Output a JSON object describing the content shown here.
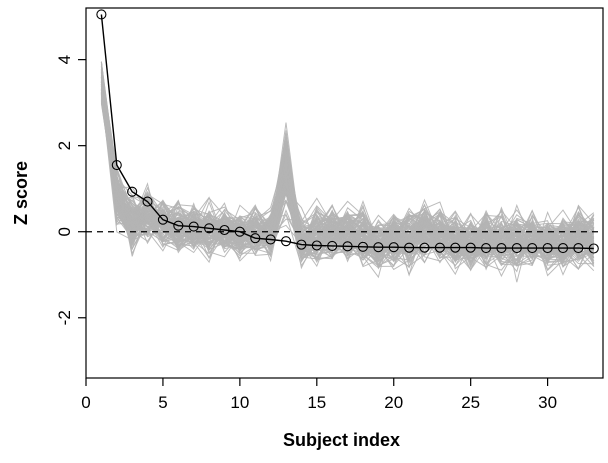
{
  "chart_data": {
    "type": "line",
    "title": "",
    "xlabel": "Subject index",
    "ylabel": "Z score",
    "xlim": [
      0,
      33.6
    ],
    "ylim": [
      -3.4,
      5.2
    ],
    "x_ticks": [
      0,
      5,
      10,
      15,
      20,
      25,
      30
    ],
    "y_ticks": [
      -2,
      0,
      2,
      4
    ],
    "grid": false,
    "legend": "none",
    "reference_line": {
      "y": 0,
      "style": "dashed"
    },
    "colors": {
      "highlighted_series": "#000000",
      "background_series": "#b4b4b4",
      "reference_line": "#000000",
      "axes": "#000000"
    },
    "series": [
      {
        "style": "black line with circle markers",
        "x": [
          1,
          2,
          3,
          4,
          5,
          6,
          7,
          8,
          9,
          10,
          11,
          12,
          13,
          14,
          15,
          16,
          17,
          18,
          19,
          20,
          21,
          22,
          23,
          24,
          25,
          26,
          27,
          28,
          29,
          30,
          31,
          32,
          33
        ],
        "values": [
          5.05,
          1.55,
          0.93,
          0.7,
          0.28,
          0.14,
          0.12,
          0.08,
          0.04,
          0.0,
          -0.15,
          -0.18,
          -0.22,
          -0.3,
          -0.32,
          -0.33,
          -0.34,
          -0.35,
          -0.36,
          -0.36,
          -0.37,
          -0.37,
          -0.37,
          -0.37,
          -0.37,
          -0.38,
          -0.38,
          -0.38,
          -0.38,
          -0.38,
          -0.38,
          -0.38,
          -0.39
        ]
      }
    ],
    "background_series": {
      "style": "many grey lines (permutation/null curves)",
      "count": 120,
      "x": [
        1,
        2,
        3,
        4,
        5,
        6,
        7,
        8,
        9,
        10,
        11,
        12,
        13,
        14,
        15,
        16,
        17,
        18,
        19,
        20,
        21,
        22,
        23,
        24,
        25,
        26,
        27,
        28,
        29,
        30,
        31,
        32,
        33
      ],
      "center": [
        3.5,
        0.8,
        0.2,
        0.45,
        0.2,
        0.1,
        0.05,
        0.0,
        0.1,
        -0.05,
        0.0,
        -0.1,
        1.3,
        -0.2,
        -0.1,
        0.0,
        -0.05,
        -0.1,
        -0.3,
        -0.2,
        -0.2,
        0.05,
        -0.1,
        -0.2,
        -0.25,
        -0.2,
        -0.2,
        -0.25,
        -0.2,
        -0.25,
        -0.25,
        -0.2,
        -0.2
      ],
      "spread": [
        0.7,
        0.9,
        0.8,
        0.7,
        0.7,
        0.7,
        0.7,
        0.7,
        0.7,
        0.7,
        0.7,
        0.7,
        1.2,
        0.7,
        0.8,
        0.8,
        0.8,
        0.8,
        0.8,
        0.8,
        0.8,
        0.8,
        0.8,
        0.8,
        0.8,
        0.8,
        0.8,
        0.8,
        0.8,
        0.8,
        0.8,
        0.8,
        0.8
      ]
    }
  }
}
